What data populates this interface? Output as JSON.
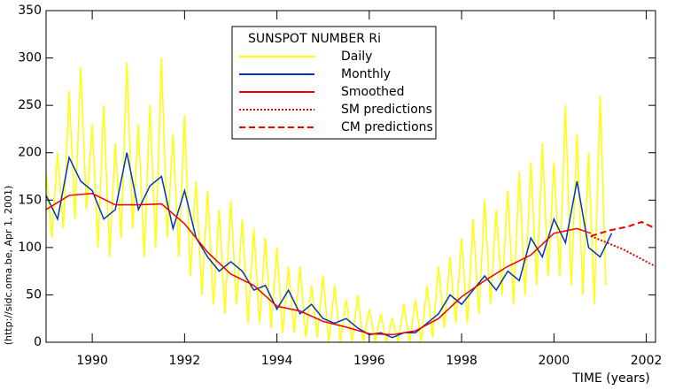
{
  "chart_data": {
    "type": "line",
    "legend_title": "SUNSPOT NUMBER Ri",
    "x_label": "TIME (years)",
    "y_label": "(http://sidc.oma.be, Apr  1, 2001)",
    "xlim": [
      1989,
      2002.2
    ],
    "ylim": [
      0,
      350
    ],
    "xticks": [
      1990,
      1992,
      1994,
      1996,
      1998,
      2000,
      2002
    ],
    "yticks": [
      0,
      50,
      100,
      150,
      200,
      250,
      300,
      350
    ],
    "series": [
      {
        "name": "Daily",
        "color": "#ffff00",
        "dash": "solid",
        "x": [
          1989,
          1989.125,
          1989.25,
          1989.375,
          1989.5,
          1989.625,
          1989.75,
          1989.875,
          1990,
          1990.125,
          1990.25,
          1990.375,
          1990.5,
          1990.625,
          1990.75,
          1990.875,
          1991,
          1991.125,
          1991.25,
          1991.375,
          1991.5,
          1991.625,
          1991.75,
          1991.875,
          1992,
          1992.125,
          1992.25,
          1992.375,
          1992.5,
          1992.625,
          1992.75,
          1992.875,
          1993,
          1993.125,
          1993.25,
          1993.375,
          1993.5,
          1993.625,
          1993.75,
          1993.875,
          1994,
          1994.125,
          1994.25,
          1994.375,
          1994.5,
          1994.625,
          1994.75,
          1994.875,
          1995,
          1995.125,
          1995.25,
          1995.375,
          1995.5,
          1995.625,
          1995.75,
          1995.875,
          1996,
          1996.125,
          1996.25,
          1996.375,
          1996.5,
          1996.625,
          1996.75,
          1996.875,
          1997,
          1997.125,
          1997.25,
          1997.375,
          1997.5,
          1997.625,
          1997.75,
          1997.875,
          1998,
          1998.125,
          1998.25,
          1998.375,
          1998.5,
          1998.625,
          1998.75,
          1998.875,
          1999,
          1999.125,
          1999.25,
          1999.375,
          1999.5,
          1999.625,
          1999.75,
          1999.875,
          2000,
          2000.125,
          2000.25,
          2000.375,
          2000.5,
          2000.625,
          2000.75,
          2000.875,
          2001,
          2001.125
        ],
        "values": [
          180,
          110,
          200,
          120,
          265,
          130,
          290,
          140,
          230,
          100,
          250,
          90,
          210,
          110,
          295,
          120,
          230,
          90,
          250,
          100,
          300,
          110,
          220,
          90,
          240,
          70,
          170,
          50,
          160,
          40,
          140,
          30,
          150,
          40,
          130,
          20,
          120,
          20,
          110,
          15,
          100,
          10,
          80,
          10,
          80,
          5,
          60,
          5,
          70,
          0,
          60,
          0,
          45,
          0,
          50,
          0,
          35,
          0,
          30,
          0,
          25,
          0,
          40,
          0,
          45,
          0,
          60,
          5,
          80,
          15,
          90,
          20,
          110,
          20,
          130,
          30,
          150,
          40,
          140,
          50,
          160,
          40,
          180,
          50,
          190,
          60,
          210,
          70,
          190,
          70,
          250,
          60,
          220,
          50,
          200,
          40,
          260,
          60
        ]
      },
      {
        "name": "Monthly",
        "color": "#0033cc",
        "dash": "solid",
        "x": [
          1989,
          1989.25,
          1989.5,
          1989.75,
          1990,
          1990.25,
          1990.5,
          1990.75,
          1991,
          1991.25,
          1991.5,
          1991.75,
          1992,
          1992.25,
          1992.5,
          1992.75,
          1993,
          1993.25,
          1993.5,
          1993.75,
          1994,
          1994.25,
          1994.5,
          1994.75,
          1995,
          1995.25,
          1995.5,
          1995.75,
          1996,
          1996.25,
          1996.5,
          1996.75,
          1997,
          1997.25,
          1997.5,
          1997.75,
          1998,
          1998.25,
          1998.5,
          1998.75,
          1999,
          1999.25,
          1999.5,
          1999.75,
          2000,
          2000.25,
          2000.5,
          2000.75,
          2001,
          2001.25
        ],
        "values": [
          155,
          130,
          195,
          170,
          160,
          130,
          140,
          200,
          140,
          165,
          175,
          120,
          160,
          110,
          90,
          75,
          85,
          75,
          55,
          60,
          35,
          55,
          30,
          40,
          25,
          20,
          25,
          15,
          8,
          10,
          5,
          10,
          10,
          20,
          30,
          50,
          40,
          55,
          70,
          55,
          75,
          65,
          110,
          90,
          130,
          105,
          170,
          100,
          90,
          115
        ]
      },
      {
        "name": "Smoothed",
        "color": "#ee0000",
        "dash": "solid",
        "x": [
          1989,
          1989.5,
          1990,
          1990.5,
          1991,
          1991.5,
          1992,
          1992.5,
          1993,
          1993.5,
          1994,
          1994.5,
          1995,
          1995.5,
          1996,
          1996.5,
          1997,
          1997.5,
          1998,
          1998.5,
          1999,
          1999.5,
          2000,
          2000.5,
          2000.8
        ],
        "values": [
          140,
          155,
          157,
          145,
          145,
          146,
          125,
          95,
          72,
          60,
          38,
          33,
          22,
          16,
          9,
          8,
          12,
          25,
          48,
          65,
          80,
          92,
          115,
          120,
          115
        ]
      },
      {
        "name": "SM predictions",
        "color": "#ee0000",
        "dash": "dotted",
        "x": [
          2000.8,
          2001.5,
          2002.2
        ],
        "values": [
          112,
          98,
          80
        ]
      },
      {
        "name": "CM predictions",
        "color": "#ee0000",
        "dash": "dashed",
        "x": [
          2000.8,
          2001.2,
          2001.6,
          2001.9,
          2002.2
        ],
        "values": [
          112,
          118,
          122,
          127,
          120
        ]
      }
    ]
  }
}
